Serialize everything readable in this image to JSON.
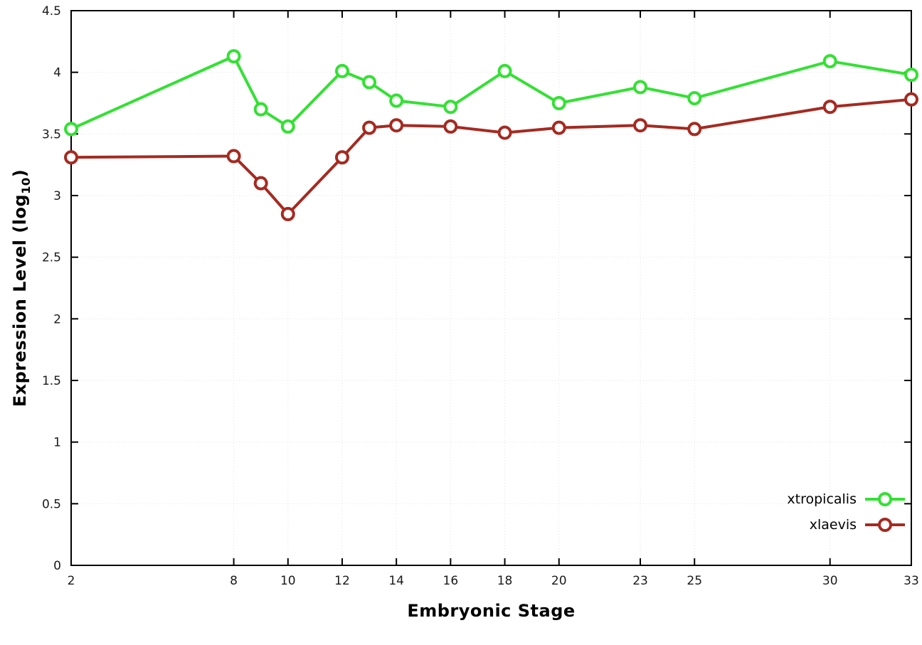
{
  "chart_data": {
    "type": "line",
    "title": "",
    "xlabel": "Embryonic Stage",
    "ylabel_main": "Expression Level (log",
    "ylabel_sub": "10",
    "ylabel_close": ")",
    "x": [
      2,
      8,
      9,
      10,
      12,
      13,
      14,
      16,
      18,
      20,
      23,
      25,
      30,
      33
    ],
    "series": [
      {
        "name": "xtropicalis",
        "color": "#33e133",
        "values": [
          3.54,
          4.13,
          3.7,
          3.56,
          4.01,
          3.92,
          3.77,
          3.72,
          4.01,
          3.75,
          3.88,
          3.79,
          4.09,
          3.98
        ]
      },
      {
        "name": "xlaevis",
        "color": "#a52a21",
        "values": [
          3.31,
          3.32,
          3.1,
          2.85,
          3.31,
          3.55,
          3.57,
          3.56,
          3.51,
          3.55,
          3.57,
          3.54,
          3.72,
          3.78
        ]
      }
    ],
    "xlim": [
      2,
      33
    ],
    "ylim": [
      0,
      4.5
    ],
    "xticks": [
      2,
      8,
      10,
      12,
      14,
      16,
      18,
      20,
      23,
      25,
      30,
      33
    ],
    "yticks": [
      0,
      0.5,
      1,
      1.5,
      2,
      2.5,
      3,
      3.5,
      4,
      4.5
    ],
    "grid": true,
    "legend_position": "bottom-right",
    "marker": "open-circle",
    "background_color": "#ffffff",
    "axis_color": "#000000"
  }
}
